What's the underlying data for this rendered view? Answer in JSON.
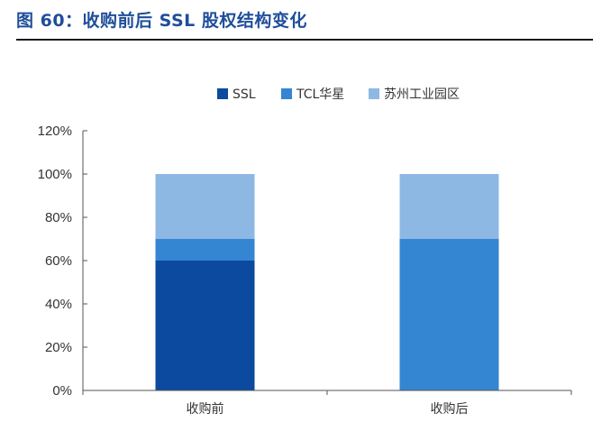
{
  "figure": {
    "title": "图 60：收购前后 SSL 股权结构变化"
  },
  "chart_data": {
    "type": "bar",
    "stacked": true,
    "categories": [
      "收购前",
      "收购后"
    ],
    "series": [
      {
        "name": "SSL",
        "values": [
          60,
          0
        ],
        "color": "#0B4A9E"
      },
      {
        "name": "TCL华星",
        "values": [
          10,
          70
        ],
        "color": "#3586D2"
      },
      {
        "name": "苏州工业园区",
        "values": [
          30,
          30
        ],
        "color": "#8DB8E4"
      }
    ],
    "yticks": [
      "0%",
      "20%",
      "40%",
      "60%",
      "80%",
      "100%",
      "120%"
    ],
    "ylim": [
      0,
      120
    ],
    "legend_position": "top-center",
    "grid": false,
    "xlabel": "",
    "ylabel": ""
  }
}
